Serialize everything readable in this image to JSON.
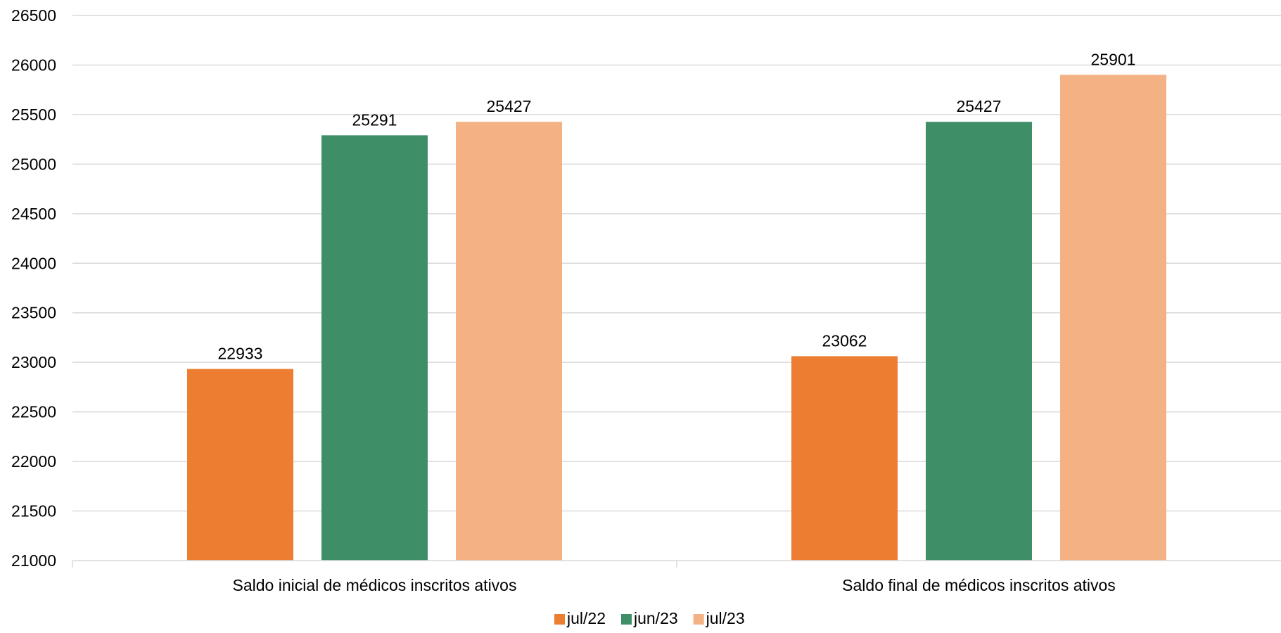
{
  "chart_data": {
    "type": "bar",
    "title": "",
    "xlabel": "",
    "ylabel": "",
    "categories": [
      "Saldo inicial de médicos inscritos ativos",
      "Saldo final de médicos inscritos ativos"
    ],
    "series": [
      {
        "name": "jul/22",
        "values": [
          22933,
          23062
        ],
        "color": "#ED7D31"
      },
      {
        "name": "jun/23",
        "values": [
          25291,
          25427
        ],
        "color": "#3E8E68"
      },
      {
        "name": "jul/23",
        "values": [
          25427,
          25901
        ],
        "color": "#F4B183"
      }
    ],
    "ylim": [
      21000,
      26500
    ],
    "yticks": [
      21000,
      21500,
      22000,
      22500,
      23000,
      23500,
      24000,
      24500,
      25000,
      25500,
      26000,
      26500
    ],
    "grid": true,
    "legend_position": "bottom-center",
    "data_labels": true
  }
}
